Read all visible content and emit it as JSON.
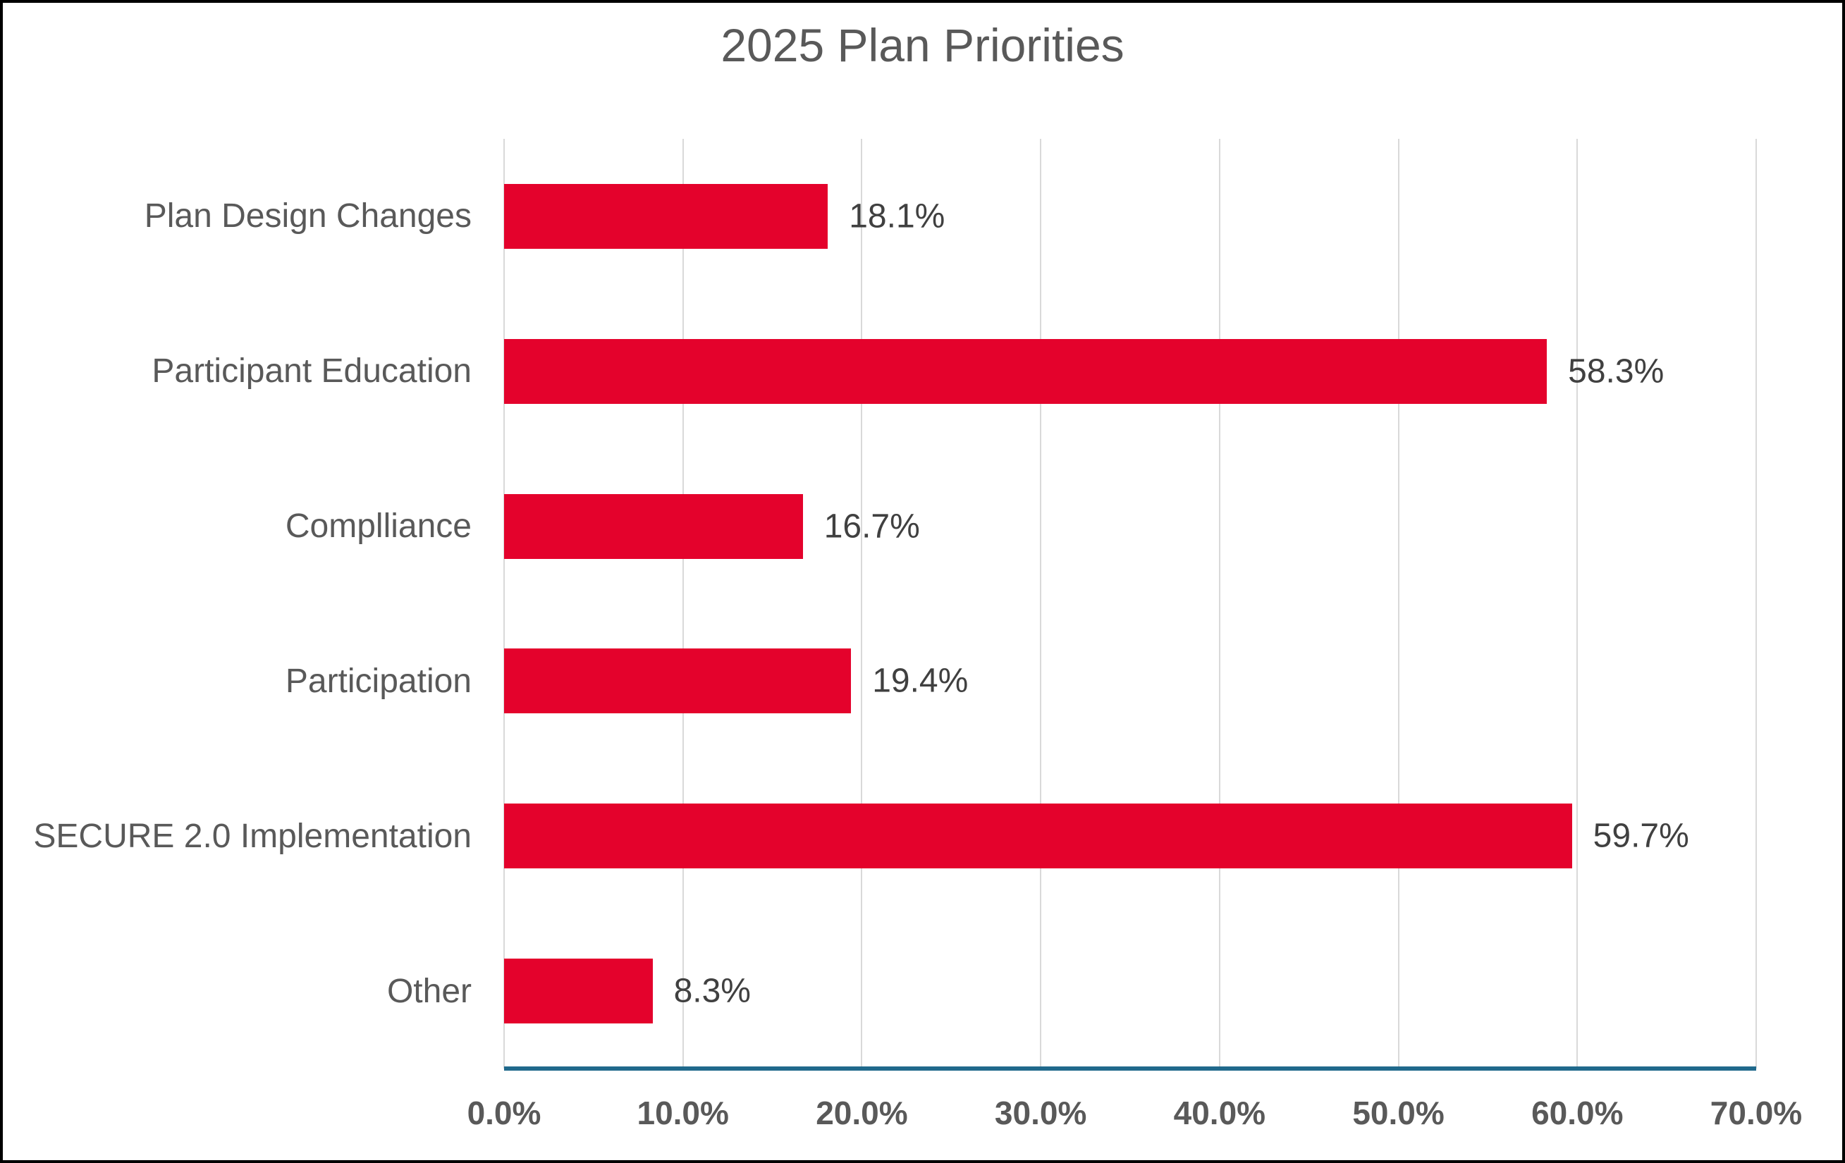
{
  "title": "2025 Plan Priorities",
  "colors": {
    "bar": "#E4022C",
    "axis_line": "#20698C",
    "gridline": "#D9D9D9",
    "text": "#595959",
    "data_label": "#404040",
    "background": "#FFFFFF",
    "frame_border": "#000000"
  },
  "chart_data": {
    "type": "bar",
    "orientation": "horizontal",
    "title": "2025 Plan Priorities",
    "categories": [
      "Plan Design Changes",
      "Participant Education",
      "Complliance",
      "Participation",
      "SECURE 2.0 Implementation",
      "Other"
    ],
    "values": [
      18.1,
      58.3,
      16.7,
      19.4,
      59.7,
      8.3
    ],
    "data_labels": [
      "18.1%",
      "58.3%",
      "16.7%",
      "19.4%",
      "59.7%",
      "8.3%"
    ],
    "x_ticks": [
      "0.0%",
      "10.0%",
      "20.0%",
      "30.0%",
      "40.0%",
      "50.0%",
      "60.0%",
      "70.0%"
    ],
    "xlim": [
      0,
      70
    ],
    "xlabel": "",
    "ylabel": "",
    "grid": true,
    "legend": false
  }
}
